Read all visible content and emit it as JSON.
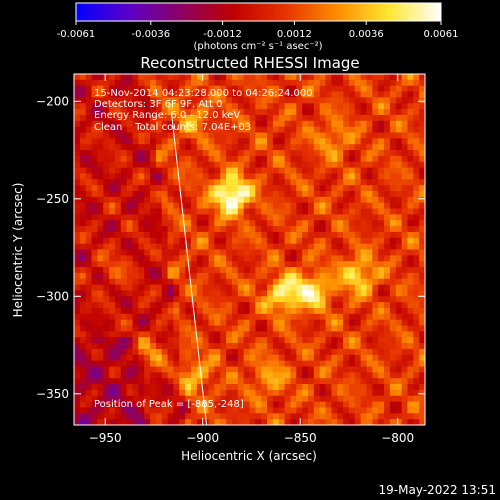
{
  "chart_data": {
    "type": "heatmap",
    "title": "Reconstructed RHESSI Image",
    "xlabel": "Heliocentric X (arcsec)",
    "ylabel": "Heliocentric Y (arcsec)",
    "xlim": [
      -966,
      -786
    ],
    "ylim": [
      -366,
      -186
    ],
    "xticks": [
      -950,
      -900,
      -850,
      -800
    ],
    "yticks": [
      -200,
      -250,
      -300,
      -350
    ],
    "colorbar": {
      "range": [
        -0.0061,
        0.0061
      ],
      "ticks": [
        "-0.0061",
        "-0.0036",
        "-0.0012",
        "0.0012",
        "0.0036",
        "0.0061"
      ],
      "unit_label": "(photons cm⁻² s⁻¹ asec⁻²)",
      "colormap": [
        "#0000ff",
        "#5a00c8",
        "#8c0064",
        "#be0000",
        "#e63200",
        "#ff8c00",
        "#ffe632",
        "#ffffff"
      ]
    },
    "annotations": [
      "15-Nov-2014 04:23:28.000 to 04:26:24.000",
      "Detectors: 3F 6F 9F, Att 0",
      "Energy Range: 6.0 - 12.0 keV",
      "Clean    Total counts: 7.04E+03"
    ],
    "peak_label": "Position of Peak = [-885,-248]",
    "peak": {
      "x": -885,
      "y": -248
    },
    "sources": [
      {
        "x": -885,
        "y": -248,
        "intensity": 0.0061
      },
      {
        "x": -858,
        "y": -299,
        "intensity": 0.0042
      },
      {
        "x": -843,
        "y": -297,
        "intensity": 0.0038
      },
      {
        "x": -820,
        "y": -289,
        "intensity": 0.0036
      },
      {
        "x": -926,
        "y": -329,
        "intensity": 0.0026
      },
      {
        "x": -904,
        "y": -341,
        "intensity": 0.0024
      },
      {
        "x": -866,
        "y": -342,
        "intensity": 0.0022
      },
      {
        "x": -833,
        "y": -219,
        "intensity": 0.0021
      },
      {
        "x": -905,
        "y": -209,
        "intensity": 0.0018
      },
      {
        "x": -945,
        "y": -286,
        "intensity": 0.0016
      }
    ],
    "limb_line": [
      {
        "x": -916,
        "y": -206
      },
      {
        "x": -898,
        "y": -366
      }
    ]
  },
  "timestamp": "19-May-2022 13:51"
}
